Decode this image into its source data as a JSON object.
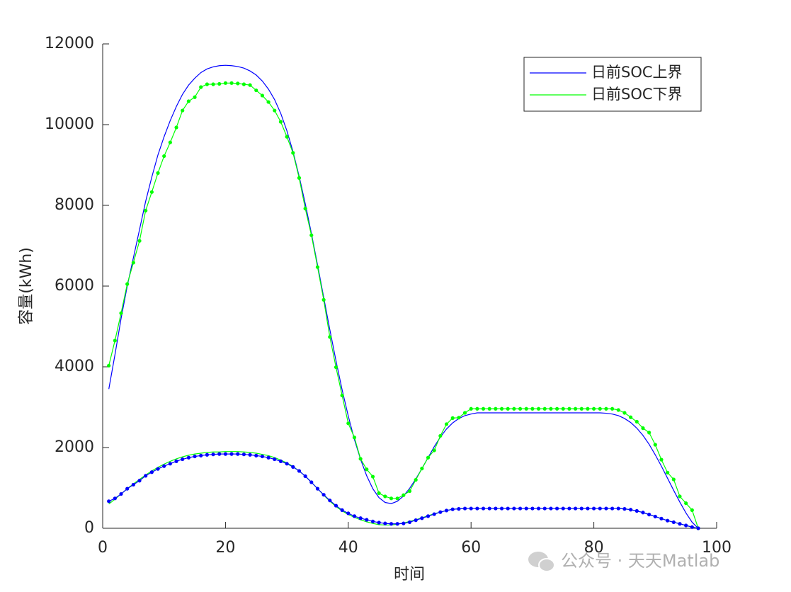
{
  "chart_data": {
    "type": "line",
    "xlabel": "时间",
    "ylabel": "容量(kWh)",
    "x": [
      1,
      2,
      3,
      4,
      5,
      6,
      7,
      8,
      9,
      10,
      11,
      12,
      13,
      14,
      15,
      16,
      17,
      18,
      19,
      20,
      21,
      22,
      23,
      24,
      25,
      26,
      27,
      28,
      29,
      30,
      31,
      32,
      33,
      34,
      35,
      36,
      37,
      38,
      39,
      40,
      41,
      42,
      43,
      44,
      45,
      46,
      47,
      48,
      49,
      50,
      51,
      52,
      53,
      54,
      55,
      56,
      57,
      58,
      59,
      60,
      61,
      62,
      63,
      64,
      65,
      66,
      67,
      68,
      69,
      70,
      71,
      72,
      73,
      74,
      75,
      76,
      77,
      78,
      79,
      80,
      81,
      82,
      83,
      84,
      85,
      86,
      87,
      88,
      89,
      90,
      91,
      92,
      93,
      94,
      95,
      96,
      97
    ],
    "series": [
      {
        "name": "日前SOC上界",
        "color": "#0000ff",
        "values": [
          3450,
          4300,
          5200,
          6000,
          6700,
          7400,
          8100,
          8700,
          9250,
          9700,
          10100,
          10450,
          10750,
          10980,
          11150,
          11290,
          11380,
          11430,
          11460,
          11470,
          11460,
          11440,
          11400,
          11330,
          11230,
          11080,
          10880,
          10620,
          10280,
          9850,
          9330,
          8720,
          8040,
          7300,
          6520,
          5720,
          4920,
          4150,
          3430,
          2780,
          2200,
          1710,
          1300,
          980,
          760,
          640,
          610,
          670,
          800,
          990,
          1220,
          1480,
          1750,
          2020,
          2260,
          2460,
          2610,
          2720,
          2790,
          2830,
          2860,
          2860,
          2860,
          2860,
          2860,
          2860,
          2860,
          2860,
          2860,
          2860,
          2860,
          2860,
          2860,
          2860,
          2860,
          2860,
          2860,
          2860,
          2860,
          2860,
          2860,
          2850,
          2830,
          2790,
          2720,
          2620,
          2480,
          2300,
          2080,
          1820,
          1540,
          1240,
          940,
          650,
          380,
          150,
          0
        ]
      },
      {
        "name": "日前SOC下界",
        "color": "#00ff00",
        "values": [
          600,
          720,
          850,
          980,
          1100,
          1210,
          1320,
          1420,
          1510,
          1590,
          1660,
          1720,
          1770,
          1810,
          1840,
          1860,
          1880,
          1890,
          1890,
          1900,
          1900,
          1900,
          1890,
          1880,
          1860,
          1830,
          1800,
          1750,
          1690,
          1620,
          1530,
          1420,
          1290,
          1140,
          980,
          820,
          670,
          540,
          430,
          340,
          270,
          210,
          160,
          120,
          90,
          80,
          80,
          100,
          130,
          170,
          210,
          260,
          310,
          360,
          400,
          440,
          470,
          480,
          490,
          490,
          490,
          490,
          490,
          490,
          490,
          490,
          490,
          490,
          490,
          490,
          490,
          490,
          490,
          490,
          490,
          490,
          490,
          490,
          490,
          490,
          490,
          490,
          490,
          490,
          480,
          460,
          430,
          390,
          340,
          290,
          240,
          190,
          150,
          110,
          70,
          30,
          0
        ]
      },
      {
        "color": "#00ff00",
        "marker": true,
        "values": [
          4030,
          4650,
          5330,
          6050,
          6580,
          7120,
          7870,
          8330,
          8800,
          9220,
          9560,
          9930,
          10350,
          10580,
          10680,
          10930,
          11000,
          11000,
          11010,
          11030,
          11030,
          11020,
          11000,
          10980,
          10850,
          10720,
          10560,
          10350,
          10070,
          9700,
          9300,
          8680,
          7920,
          7260,
          6470,
          5660,
          4740,
          3990,
          3290,
          2600,
          2250,
          1720,
          1460,
          1280,
          870,
          790,
          740,
          740,
          820,
          920,
          1200,
          1480,
          1750,
          1930,
          2290,
          2580,
          2730,
          2740,
          2860,
          2960,
          2960,
          2960,
          2960,
          2960,
          2960,
          2960,
          2960,
          2960,
          2960,
          2960,
          2960,
          2960,
          2960,
          2960,
          2960,
          2960,
          2960,
          2960,
          2960,
          2960,
          2960,
          2960,
          2960,
          2930,
          2860,
          2750,
          2640,
          2480,
          2370,
          2070,
          1700,
          1380,
          1210,
          790,
          620,
          450,
          0
        ]
      },
      {
        "color": "#0000ff",
        "marker": true,
        "values": [
          670,
          740,
          850,
          980,
          1080,
          1180,
          1300,
          1390,
          1470,
          1540,
          1600,
          1660,
          1710,
          1750,
          1780,
          1800,
          1820,
          1830,
          1840,
          1840,
          1840,
          1840,
          1830,
          1820,
          1800,
          1780,
          1750,
          1710,
          1660,
          1600,
          1520,
          1420,
          1290,
          1140,
          980,
          830,
          690,
          560,
          450,
          370,
          300,
          250,
          210,
          170,
          140,
          120,
          110,
          110,
          120,
          150,
          200,
          250,
          300,
          350,
          400,
          440,
          470,
          480,
          490,
          490,
          490,
          490,
          490,
          490,
          490,
          490,
          490,
          490,
          490,
          490,
          490,
          490,
          490,
          490,
          490,
          490,
          490,
          490,
          490,
          490,
          490,
          490,
          490,
          490,
          480,
          460,
          430,
          390,
          340,
          290,
          240,
          190,
          150,
          110,
          70,
          30,
          0
        ]
      }
    ],
    "xlim": [
      0,
      100
    ],
    "xticks": [
      0,
      20,
      40,
      60,
      80,
      100
    ],
    "ylim": [
      0,
      12000
    ],
    "yticks": [
      0,
      2000,
      4000,
      6000,
      8000,
      10000,
      12000
    ],
    "grid": false,
    "legend": "northeast"
  },
  "watermark": "公众号 · 天天Matlab"
}
